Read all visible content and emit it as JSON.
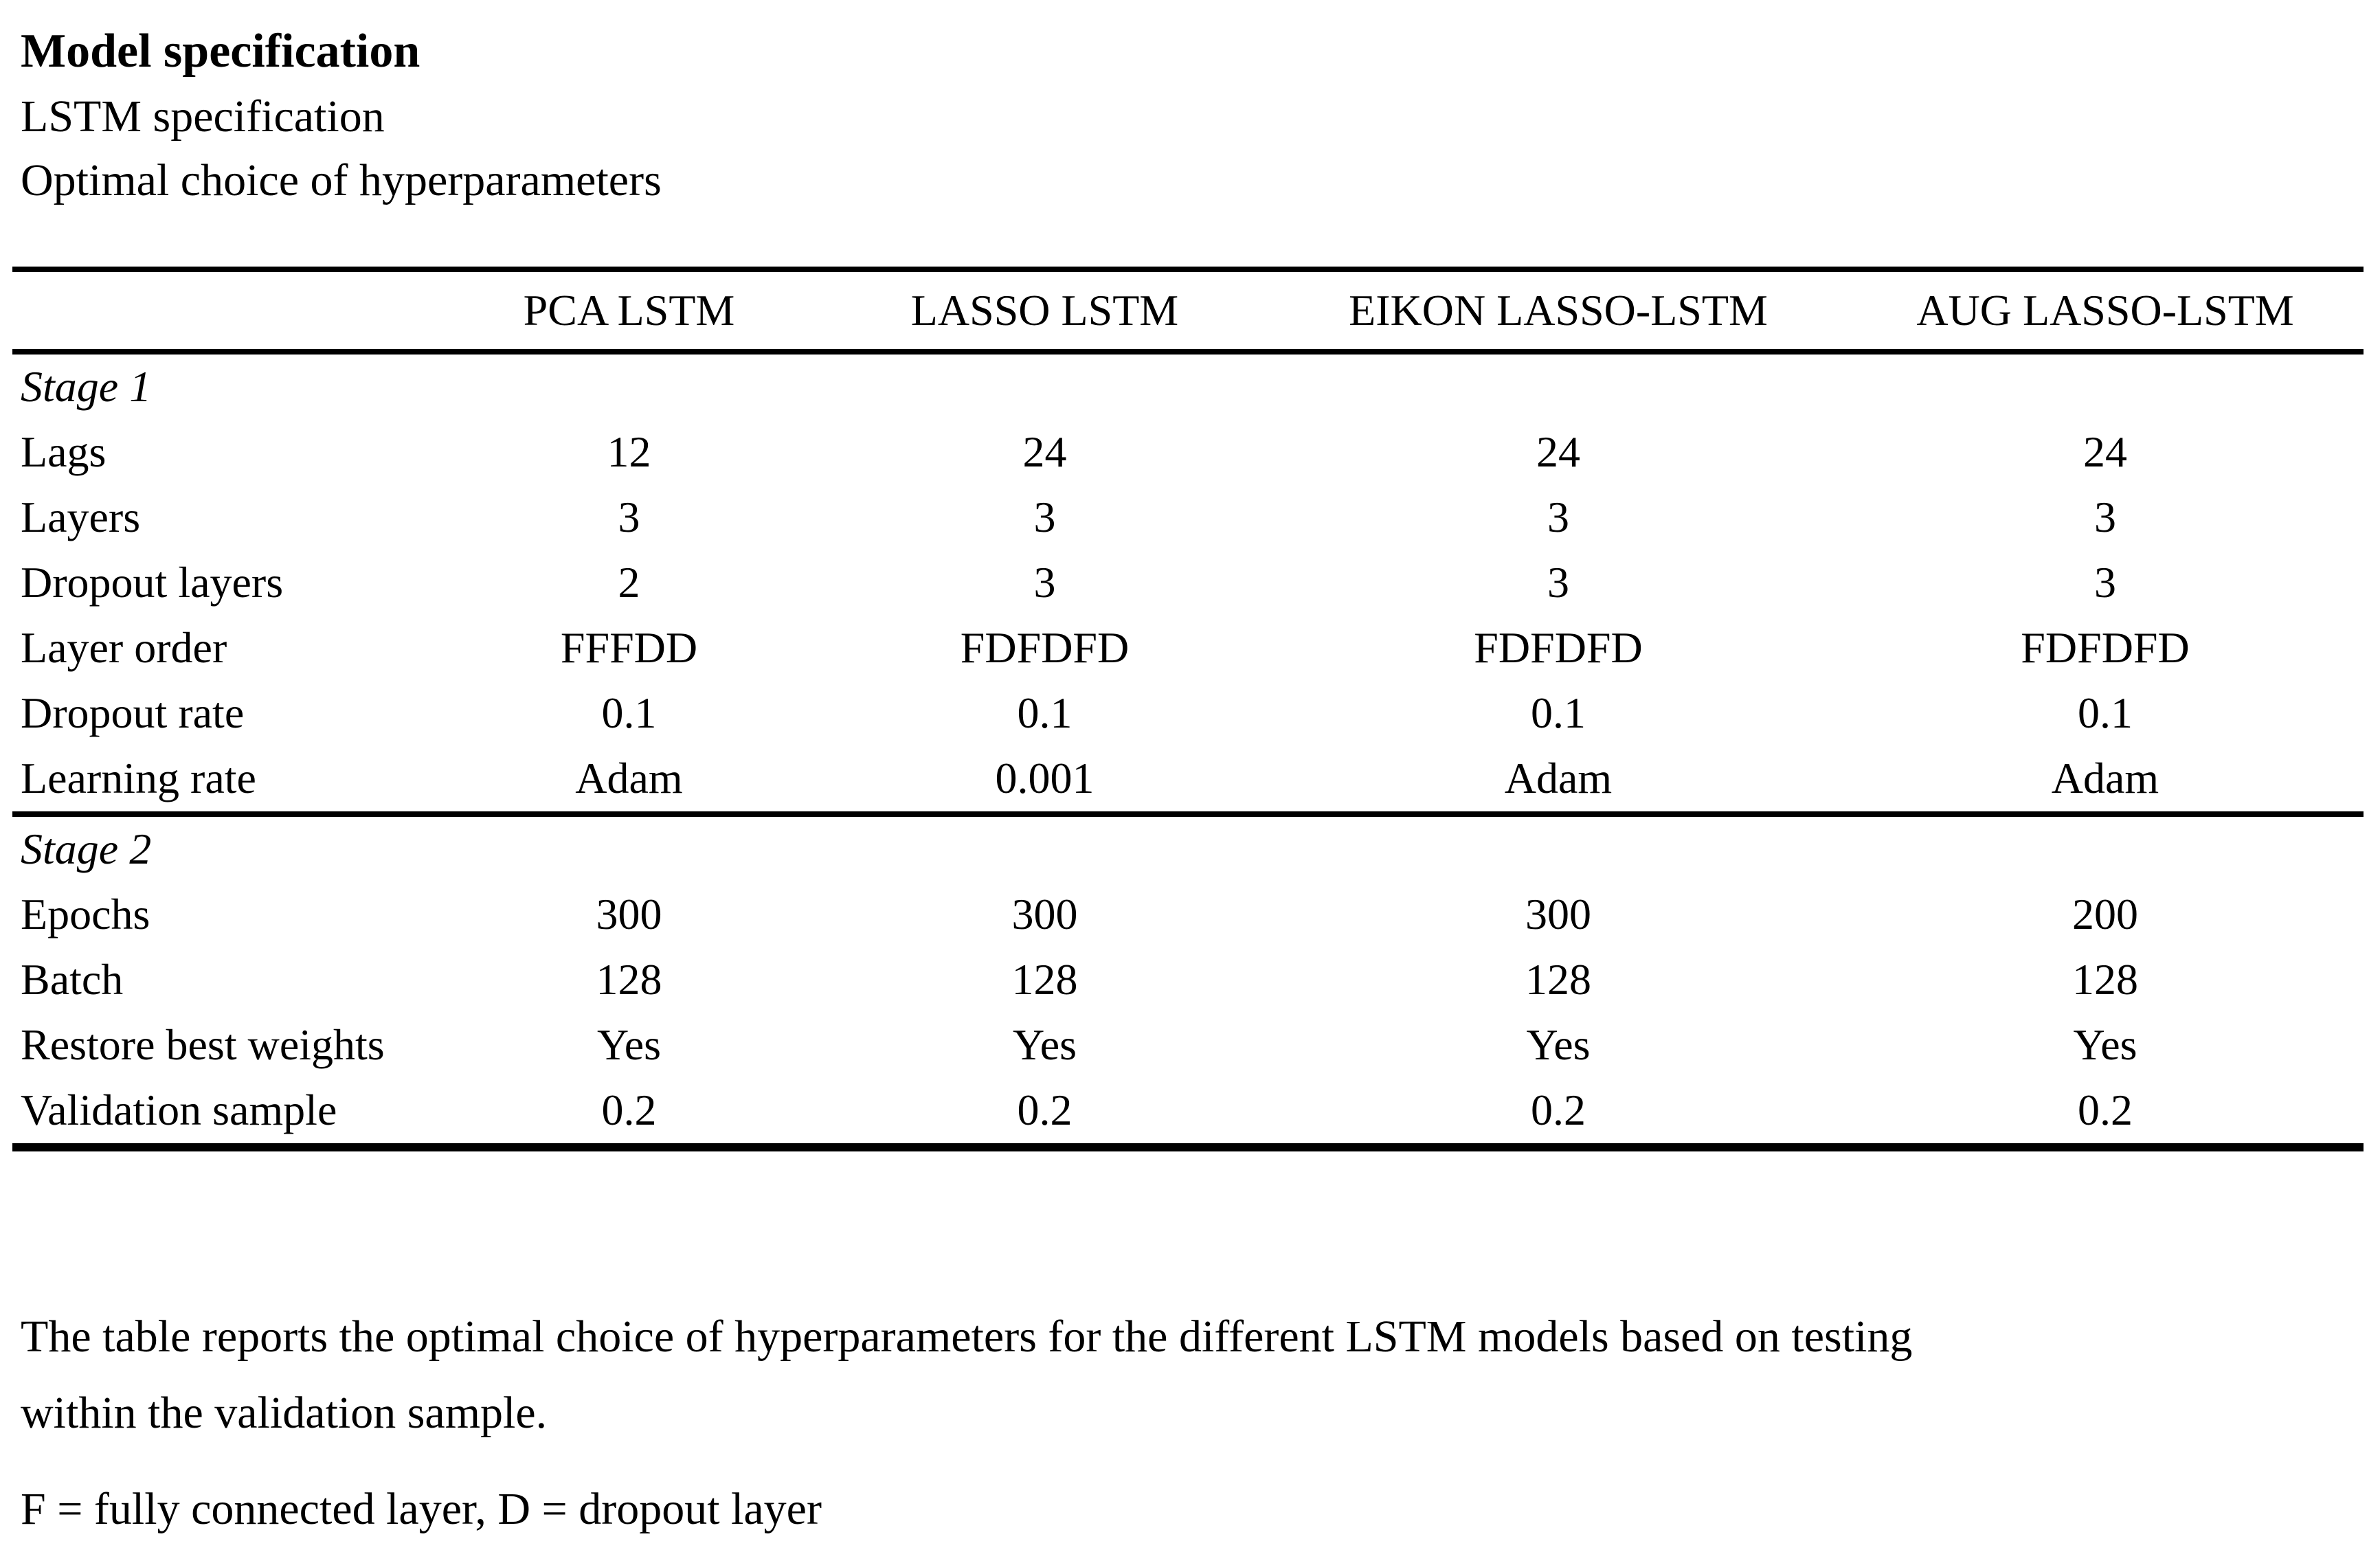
{
  "page": {
    "background_color": "#ffffff",
    "text_color": "#000000"
  },
  "heading": {
    "title": "Model specification",
    "subtitle1": "LSTM specification",
    "subtitle2": "Optimal choice of hyperparameters"
  },
  "table": {
    "columns": [
      "",
      "PCA LSTM",
      "LASSO LSTM",
      "EIKON LASSO-LSTM",
      "AUG LASSO-LSTM"
    ],
    "sections": [
      {
        "label": "Stage 1",
        "rows": [
          {
            "label": "Lags",
            "values": [
              "12",
              "24",
              "24",
              "24"
            ]
          },
          {
            "label": "Layers",
            "values": [
              "3",
              "3",
              "3",
              "3"
            ]
          },
          {
            "label": "Dropout layers",
            "values": [
              "2",
              "3",
              "3",
              "3"
            ]
          },
          {
            "label": "Layer order",
            "values": [
              "FFFDD",
              "FDFDFD",
              "FDFDFD",
              "FDFDFD"
            ]
          },
          {
            "label": "Dropout rate",
            "values": [
              "0.1",
              "0.1",
              "0.1",
              "0.1"
            ]
          },
          {
            "label": "Learning rate",
            "values": [
              "Adam",
              "0.001",
              "Adam",
              "Adam"
            ]
          }
        ]
      },
      {
        "label": "Stage 2",
        "rows": [
          {
            "label": "Epochs",
            "values": [
              "300",
              "300",
              "300",
              "200"
            ]
          },
          {
            "label": "Batch",
            "values": [
              "128",
              "128",
              "128",
              "128"
            ]
          },
          {
            "label": "Restore best weights",
            "values": [
              "Yes",
              "Yes",
              "Yes",
              "Yes"
            ]
          },
          {
            "label": "Validation sample",
            "values": [
              "0.2",
              "0.2",
              "0.2",
              "0.2"
            ]
          }
        ]
      }
    ]
  },
  "notes": {
    "caption_line1": "The table reports the optimal choice of hyperparameters for the different LSTM models based on testing",
    "caption_line2": "within the validation sample.",
    "legend": "F = fully connected layer, D = dropout layer"
  }
}
